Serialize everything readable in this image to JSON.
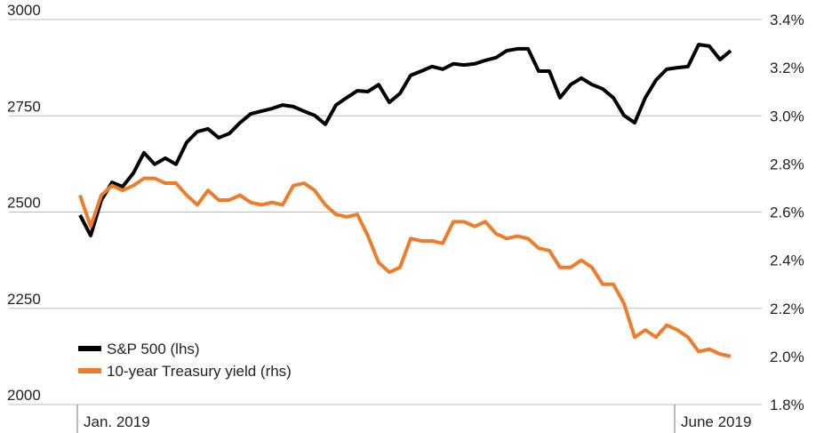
{
  "chart_data": {
    "type": "line",
    "categories": [
      "Jan. 2019",
      null,
      null,
      null,
      null,
      null,
      null,
      null,
      null,
      null,
      null,
      null,
      null,
      null,
      null,
      null,
      null,
      null,
      null,
      null,
      null,
      null,
      null,
      null,
      null,
      null,
      null,
      null,
      null,
      null,
      null,
      null,
      null,
      null,
      null,
      null,
      null,
      null,
      null,
      null,
      null,
      null,
      null,
      null,
      null,
      null,
      null,
      null,
      null,
      null,
      null,
      null,
      null,
      null,
      null,
      null,
      "June 2019",
      null,
      null,
      null,
      null,
      null
    ],
    "series": [
      {
        "name": "S&P 500 (lhs)",
        "color": "#000000",
        "values": [
          2492,
          2439,
          2531,
          2577,
          2566,
          2601,
          2654,
          2624,
          2640,
          2624,
          2681,
          2709,
          2716,
          2693,
          2704,
          2732,
          2755,
          2762,
          2769,
          2778,
          2774,
          2762,
          2751,
          2728,
          2778,
          2797,
          2815,
          2813,
          2831,
          2785,
          2808,
          2855,
          2866,
          2878,
          2871,
          2885,
          2882,
          2885,
          2894,
          2901,
          2919,
          2924,
          2924,
          2866,
          2866,
          2797,
          2831,
          2848,
          2831,
          2820,
          2797,
          2751,
          2732,
          2797,
          2843,
          2871,
          2875,
          2878,
          2935,
          2931,
          2896,
          2919
        ]
      },
      {
        "name": "10-year Treasury yield (rhs)",
        "color": "#f07c2a",
        "axis": "y2",
        "values": [
          2.67,
          2.54,
          2.67,
          2.71,
          2.69,
          2.71,
          2.74,
          2.74,
          2.72,
          2.72,
          2.67,
          2.63,
          2.69,
          2.65,
          2.65,
          2.67,
          2.64,
          2.63,
          2.64,
          2.63,
          2.71,
          2.72,
          2.69,
          2.63,
          2.59,
          2.58,
          2.59,
          2.5,
          2.39,
          2.35,
          2.37,
          2.49,
          2.48,
          2.48,
          2.47,
          2.56,
          2.56,
          2.54,
          2.56,
          2.51,
          2.49,
          2.5,
          2.49,
          2.45,
          2.44,
          2.37,
          2.37,
          2.4,
          2.37,
          2.3,
          2.3,
          2.22,
          2.08,
          2.11,
          2.08,
          2.13,
          2.11,
          2.08,
          2.02,
          2.03,
          2.01,
          2.0
        ]
      }
    ],
    "ylim": [
      2000,
      3000
    ],
    "yticks": [
      2000,
      2250,
      2500,
      2750,
      3000
    ],
    "y2lim": [
      1.8,
      3.4
    ],
    "y2ticks": [
      {
        "value": 1.8,
        "label": "1.8%"
      },
      {
        "value": 2.0,
        "label": "2.0%"
      },
      {
        "value": 2.2,
        "label": "2.2%"
      },
      {
        "value": 2.4,
        "label": "2.4%"
      },
      {
        "value": 2.6,
        "label": "2.6%"
      },
      {
        "value": 2.8,
        "label": "2.8%"
      },
      {
        "value": 3.0,
        "label": "3.0%"
      },
      {
        "value": 3.2,
        "label": "3.2%"
      },
      {
        "value": 3.4,
        "label": "3.4%"
      }
    ],
    "grid": true,
    "legend": "lower left"
  }
}
